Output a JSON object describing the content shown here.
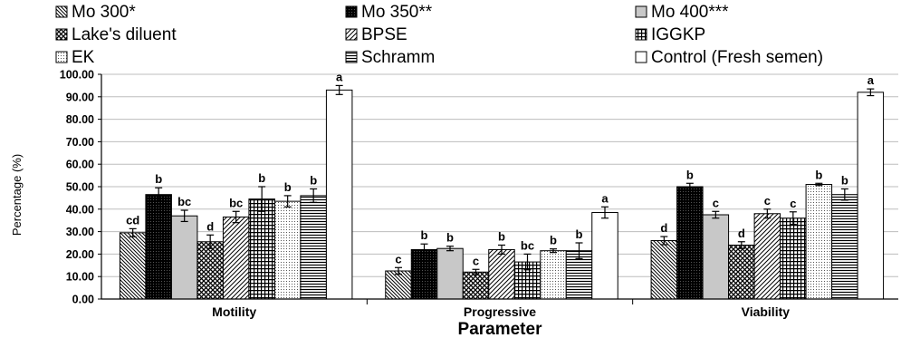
{
  "chart_data": {
    "type": "bar",
    "title": "",
    "xlabel": "Parameter",
    "ylabel": "Percentage (%)",
    "ylim": [
      0,
      100
    ],
    "yticks": [
      "0.00",
      "10.00",
      "20.00",
      "30.00",
      "40.00",
      "50.00",
      "60.00",
      "70.00",
      "80.00",
      "90.00",
      "100.00"
    ],
    "categories": [
      "Motility",
      "Progressive",
      "Viability"
    ],
    "legend_position": "top",
    "series": [
      {
        "name": "Mo 300*",
        "pattern": "diag-down",
        "values": [
          29.5,
          12.5,
          26.0
        ],
        "errors": [
          1.8,
          1.5,
          1.8
        ],
        "labels": [
          "cd",
          "c",
          "d"
        ]
      },
      {
        "name": "Mo 350**",
        "pattern": "black-dots",
        "values": [
          46.5,
          22.0,
          50.0
        ],
        "errors": [
          3.0,
          2.5,
          1.5
        ],
        "labels": [
          "b",
          "b",
          "b"
        ]
      },
      {
        "name": "Mo 400***",
        "pattern": "gray",
        "values": [
          37.0,
          22.5,
          37.5
        ],
        "errors": [
          2.5,
          1.0,
          1.5
        ],
        "labels": [
          "bc",
          "b",
          "c"
        ]
      },
      {
        "name": "Lake's diluent",
        "pattern": "crosshatch",
        "values": [
          25.5,
          12.0,
          24.0
        ],
        "errors": [
          3.0,
          1.2,
          1.5
        ],
        "labels": [
          "d",
          "c",
          "d"
        ]
      },
      {
        "name": "BPSE",
        "pattern": "diag-up",
        "values": [
          36.5,
          22.0,
          38.0
        ],
        "errors": [
          2.5,
          2.0,
          2.0
        ],
        "labels": [
          "bc",
          "b",
          "c"
        ]
      },
      {
        "name": "IGGKP",
        "pattern": "grid",
        "values": [
          44.5,
          16.5,
          36.0
        ],
        "errors": [
          5.5,
          3.5,
          2.8
        ],
        "labels": [
          "b",
          "bc",
          "c"
        ]
      },
      {
        "name": "EK",
        "pattern": "fine-dots",
        "values": [
          43.5,
          21.5,
          51.0
        ],
        "errors": [
          2.5,
          0.8,
          0.5
        ],
        "labels": [
          "b",
          "b",
          "b"
        ]
      },
      {
        "name": "Schramm",
        "pattern": "h-lines",
        "values": [
          46.0,
          21.5,
          46.5
        ],
        "errors": [
          3.0,
          3.5,
          2.5
        ],
        "labels": [
          "b",
          "b",
          "b"
        ]
      },
      {
        "name": "Control (Fresh semen)",
        "pattern": "white",
        "values": [
          93.0,
          38.5,
          92.0
        ],
        "errors": [
          2.0,
          2.5,
          1.5
        ],
        "labels": [
          "a",
          "a",
          "a"
        ]
      }
    ]
  }
}
